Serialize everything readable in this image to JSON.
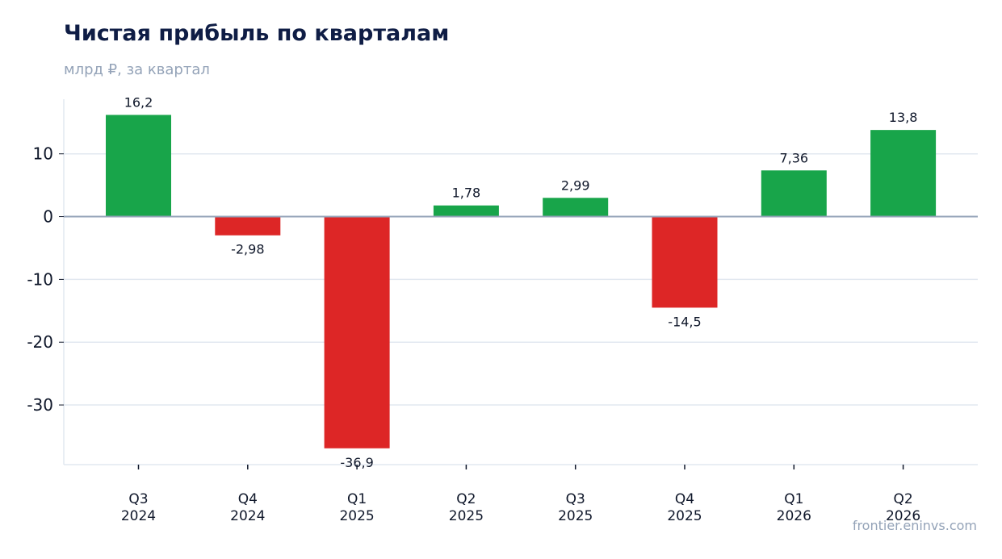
{
  "header": {
    "title": "Чистая прибыль по кварталам",
    "subtitle": "млрд ₽, за квартал"
  },
  "footer": {
    "source": "frontier.eninvs.com"
  },
  "colors": {
    "positive": "#18a54a",
    "negative": "#dd2626",
    "grid": "#e2e8f0",
    "zero_line": "#94a3b8",
    "title": "#0f1d45",
    "muted": "#94a3b8"
  },
  "chart_data": {
    "type": "bar",
    "title": "Чистая прибыль по кварталам",
    "subtitle": "млрд ₽, за квартал",
    "xlabel": "",
    "ylabel": "",
    "categories": [
      [
        "Q3",
        "2024"
      ],
      [
        "Q4",
        "2024"
      ],
      [
        "Q1",
        "2025"
      ],
      [
        "Q2",
        "2025"
      ],
      [
        "Q3",
        "2025"
      ],
      [
        "Q4",
        "2025"
      ],
      [
        "Q1",
        "2026"
      ],
      [
        "Q2",
        "2026"
      ]
    ],
    "values": [
      16.2,
      -2.98,
      -36.9,
      1.78,
      2.99,
      -14.5,
      7.36,
      13.8
    ],
    "value_labels": [
      "16,2",
      "-2,98",
      "-36,9",
      "1,78",
      "2,99",
      "-14,5",
      "7,36",
      "13,8"
    ],
    "ylim": [
      -39.5,
      18.7
    ],
    "yticks": [
      10,
      0,
      -10,
      -20,
      -30
    ],
    "ytick_labels": [
      "10",
      "0",
      "-10",
      "-20",
      "-30"
    ],
    "grid": true,
    "legend": "none"
  }
}
